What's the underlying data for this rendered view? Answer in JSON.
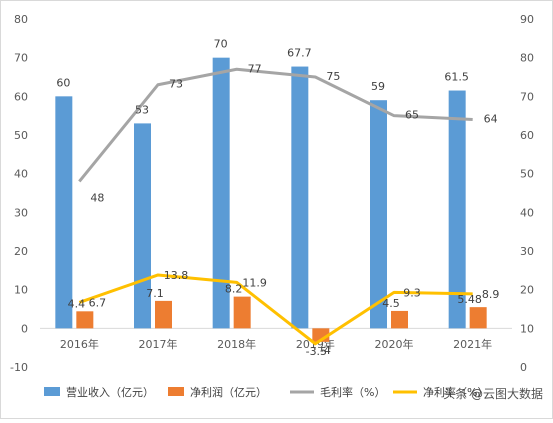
{
  "chart_data": {
    "type": "bar",
    "categories": [
      "2016年",
      "2017年",
      "2018年",
      "2019年",
      "2020年",
      "2021年"
    ],
    "series": [
      {
        "name": "营业收入（亿元）",
        "type": "bar",
        "axis": "left",
        "color": "#5B9BD5",
        "values": [
          60,
          53,
          70,
          67.7,
          59,
          61.5
        ],
        "labels": [
          "60",
          "53",
          "70",
          "67.7",
          "59",
          "61.5"
        ]
      },
      {
        "name": "净利润（亿元）",
        "type": "bar",
        "axis": "left",
        "color": "#ED7D31",
        "values": [
          4.4,
          7.1,
          8.2,
          -3.5,
          4.5,
          5.48
        ],
        "labels": [
          "4.4",
          "7.1",
          "8.2",
          "-3.5",
          "4.5",
          "5.48"
        ]
      },
      {
        "name": "毛利率（%）",
        "type": "line",
        "axis": "right",
        "color": "#A5A5A5",
        "values": [
          48,
          73,
          77,
          75,
          65,
          64
        ],
        "labels": [
          "48",
          "73",
          "77",
          "75",
          "65",
          "64"
        ]
      },
      {
        "name": "净利率（%）",
        "type": "line",
        "axis": "left",
        "color": "#FFC000",
        "values": [
          6.7,
          13.8,
          11.9,
          -4,
          9.3,
          8.9
        ],
        "labels": [
          "6.7",
          "13.8",
          "11.9",
          "-4",
          "9.3",
          "8.9"
        ]
      }
    ],
    "y_left": {
      "min": -10,
      "max": 80,
      "step": 10
    },
    "y_right": {
      "min": 0,
      "max": 90,
      "step": 10
    },
    "legend_placement": "bottom",
    "grid": false,
    "watermark": "头条 @云图大数据"
  }
}
